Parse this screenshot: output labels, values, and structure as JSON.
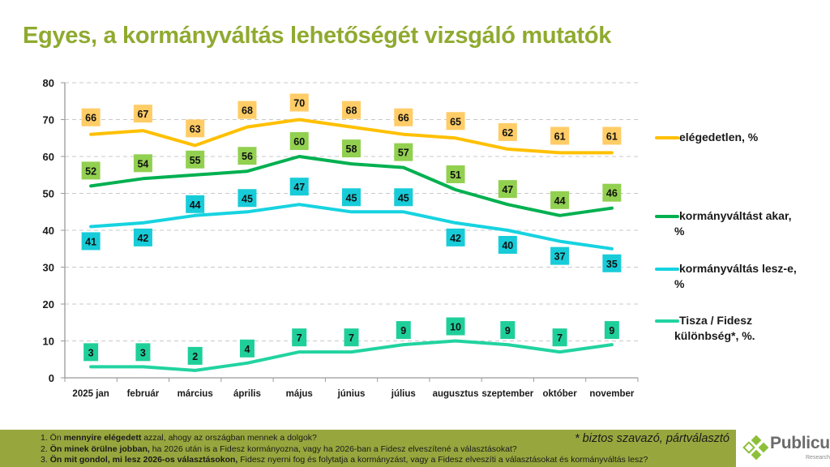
{
  "title": "Egyes, a kormányváltás lehetőségét vizsgáló mutatók",
  "chart_data": {
    "type": "line",
    "title": "Egyes, a kormányváltás lehetőségét vizsgáló mutatók",
    "xlabel": "",
    "ylabel": "",
    "ylim": [
      0,
      80
    ],
    "yticks": [
      0,
      10,
      20,
      30,
      40,
      50,
      60,
      70,
      80
    ],
    "grid": true,
    "legend_position": "right",
    "categories": [
      "2025 jan",
      "február",
      "március",
      "április",
      "május",
      "június",
      "július",
      "augusztus",
      "szeptember",
      "október",
      "november"
    ],
    "series": [
      {
        "name": "elégedetlen, %",
        "legend_lines": [
          "elégedetlen, %"
        ],
        "color": "#ffc000",
        "label_bg": "#ffcc66",
        "values": [
          66,
          67,
          63,
          68,
          70,
          68,
          66,
          65,
          62,
          61,
          61
        ],
        "label_pos": "above"
      },
      {
        "name": "kormányváltást akar, %",
        "legend_lines": [
          "kormányváltást akar,",
          "%"
        ],
        "color": "#00b050",
        "label_bg": "#92d050",
        "values": [
          52,
          54,
          55,
          56,
          60,
          58,
          57,
          51,
          47,
          44,
          46
        ],
        "label_pos": "above"
      },
      {
        "name": "kormányváltás lesz-e, %",
        "legend_lines": [
          "kormányváltás lesz-e,",
          "%"
        ],
        "color": "#17d3e0",
        "label_bg": "#17ccd8",
        "values": [
          41,
          42,
          44,
          45,
          47,
          45,
          45,
          42,
          40,
          37,
          35
        ],
        "label_pos": "mixed"
      },
      {
        "name": "Tisza / Fidesz különbség*, %.",
        "legend_lines": [
          "Tisza / Fidesz",
          "különbség*, %."
        ],
        "color": "#22d3a0",
        "label_bg": "#1fcf9a",
        "values": [
          3,
          3,
          2,
          4,
          7,
          7,
          9,
          10,
          9,
          7,
          9
        ],
        "label_pos": "above"
      }
    ]
  },
  "footer": {
    "notes": [
      {
        "num": "1. Ön ",
        "bold": "mennyire elégedett",
        "rest": " azzal, ahogy az országban mennek a dolgok?"
      },
      {
        "num": "2. ",
        "bold": "Ön minek örülne jobban,",
        "rest": " ha 2026 után is a Fidesz kormányozna, vagy ha 2026-ban a Fidesz elveszítené a választásokat?"
      },
      {
        "num": "3. ",
        "bold": "Ön mit gondol, mi lesz 2026-os választásokon,",
        "rest": " Fidesz nyerni fog és folytatja a kormányzást, vagy a Fidesz elveszíti a választásokat és kormányváltás lesz?"
      }
    ],
    "footnote": "* biztos szavazó, pártválasztó",
    "bg_color": "#97a73e"
  },
  "logo": {
    "name": "Publicus",
    "sub": "Research",
    "color": "#8dbf3a"
  }
}
